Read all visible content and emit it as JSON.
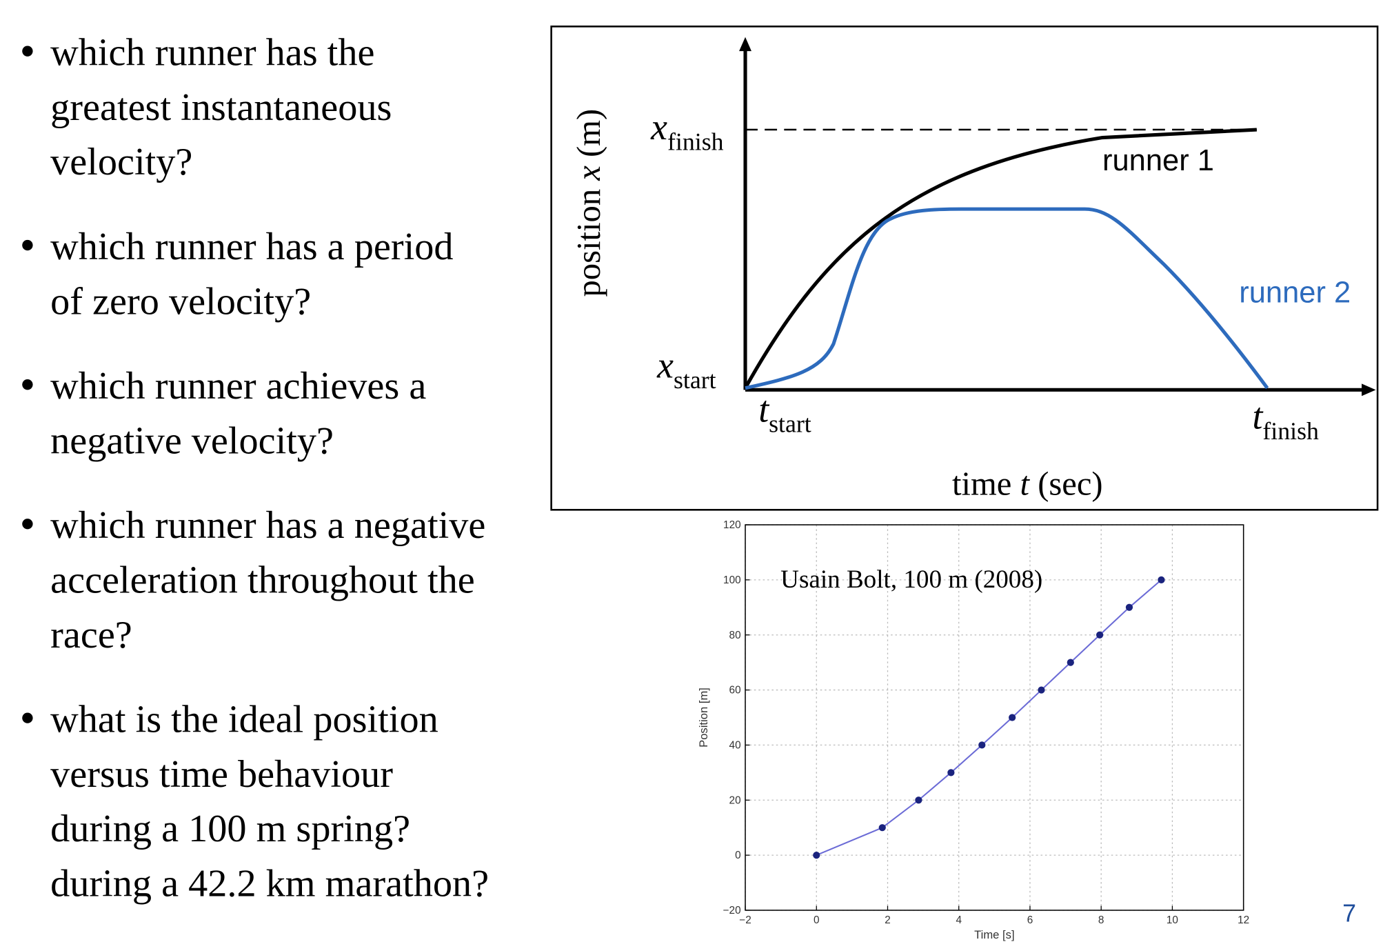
{
  "bullets": [
    [
      "which runner has the",
      "greatest instantaneous",
      "velocity?"
    ],
    [
      "which runner has a period",
      "of zero velocity?"
    ],
    [
      "which runner achieves a",
      "negative velocity?"
    ],
    [
      "which runner has a negative",
      "acceleration throughout the",
      "race?"
    ],
    [
      "what is the ideal position",
      "versus time behaviour",
      "during a 100 m spring?",
      "during a 42.2 km marathon?"
    ]
  ],
  "diagram": {
    "y_axis_label": [
      "position ",
      "x",
      " (m)"
    ],
    "x_axis_label": [
      "time ",
      "t",
      " (sec)"
    ],
    "x_finish": [
      "x",
      "finish"
    ],
    "x_start": [
      "x",
      "start"
    ],
    "t_start": [
      "t",
      "start"
    ],
    "t_finish": [
      "t",
      "finish"
    ],
    "runner_1": "runner 1",
    "runner_2": "runner 2"
  },
  "chart_data": {
    "type": "line",
    "annotation": "Usain Bolt, 100 m (2008)",
    "x_label": "Time [s]",
    "y_label": "Position [m]",
    "series": [
      {
        "color": "#6b6bd6",
        "marker_color": "#1a237e",
        "x": [
          0,
          1.85,
          2.87,
          3.78,
          4.65,
          5.5,
          6.32,
          7.14,
          7.96,
          8.79,
          9.69
        ],
        "values": [
          0,
          10,
          20,
          30,
          40,
          50,
          60,
          70,
          80,
          90,
          100
        ]
      }
    ],
    "xlim": [
      -2,
      12
    ],
    "ylim": [
      -20,
      120
    ],
    "xticks": [
      {
        "value": -2,
        "label": "−2"
      },
      0,
      2,
      4,
      6,
      8,
      10,
      12
    ],
    "yticks": [
      {
        "value": -20,
        "label": "−20"
      },
      0,
      20,
      40,
      60,
      80,
      100,
      120
    ],
    "grid": true
  },
  "page_number": "7"
}
